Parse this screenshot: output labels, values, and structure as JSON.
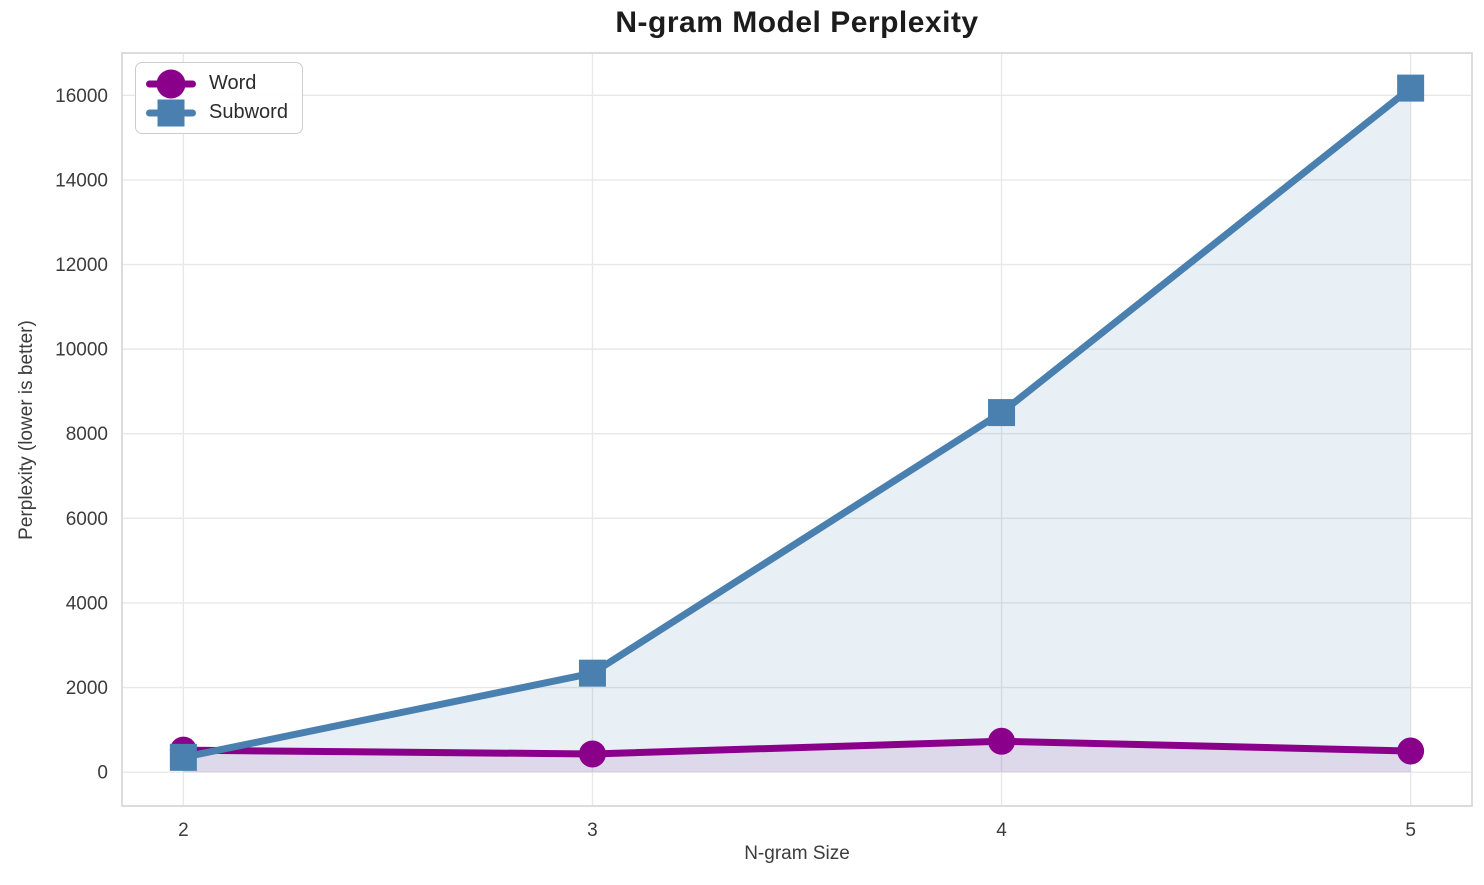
{
  "figure": {
    "title": "N-gram Model Perplexity"
  },
  "chart_data": {
    "type": "line",
    "title": "N-gram Model Perplexity",
    "xlabel": "N-gram Size",
    "ylabel": "Perplexity (lower is better)",
    "x": [
      2,
      3,
      4,
      5
    ],
    "series": [
      {
        "name": "Word",
        "values": [
          520,
          430,
          730,
          500
        ],
        "color": "#8B008B",
        "marker": "circle",
        "fill_alpha": 0.1
      },
      {
        "name": "Subword",
        "values": [
          350,
          2340,
          8500,
          16170
        ],
        "color": "#4A80B0",
        "marker": "square",
        "fill_alpha": 0.12
      }
    ],
    "xticks": [
      2,
      3,
      4,
      5
    ],
    "yticks": [
      0,
      2000,
      4000,
      6000,
      8000,
      10000,
      12000,
      14000,
      16000
    ],
    "xlim": [
      1.85,
      5.15
    ],
    "ylim": [
      -800,
      17000
    ],
    "grid": true,
    "grid_color": "#e8e8e8",
    "spine_color": "#d9d9d9",
    "legend_position": "upper left",
    "area_fill": true,
    "area_baseline": 0
  }
}
